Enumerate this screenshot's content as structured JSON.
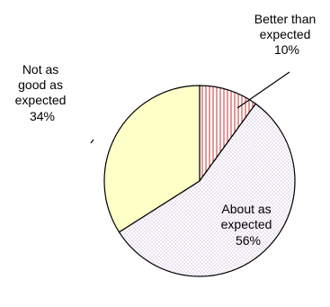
{
  "chart_data": {
    "type": "pie",
    "title": "",
    "slices": [
      {
        "label_lines": [
          "Better than",
          "expected",
          "10%"
        ],
        "value": 10,
        "color": "#cc3333",
        "pattern": "vertical-hatch"
      },
      {
        "label_lines": [
          "About as",
          "expected",
          "56%"
        ],
        "value": 56,
        "color": "#d9c7e6",
        "pattern": "dots"
      },
      {
        "label_lines": [
          "Not as",
          "good as",
          "expected",
          "34%"
        ],
        "value": 34,
        "color": "#ffffc8",
        "pattern": "solid"
      }
    ],
    "start_angle_deg": 0,
    "direction": "clockwise",
    "legend": "none"
  }
}
